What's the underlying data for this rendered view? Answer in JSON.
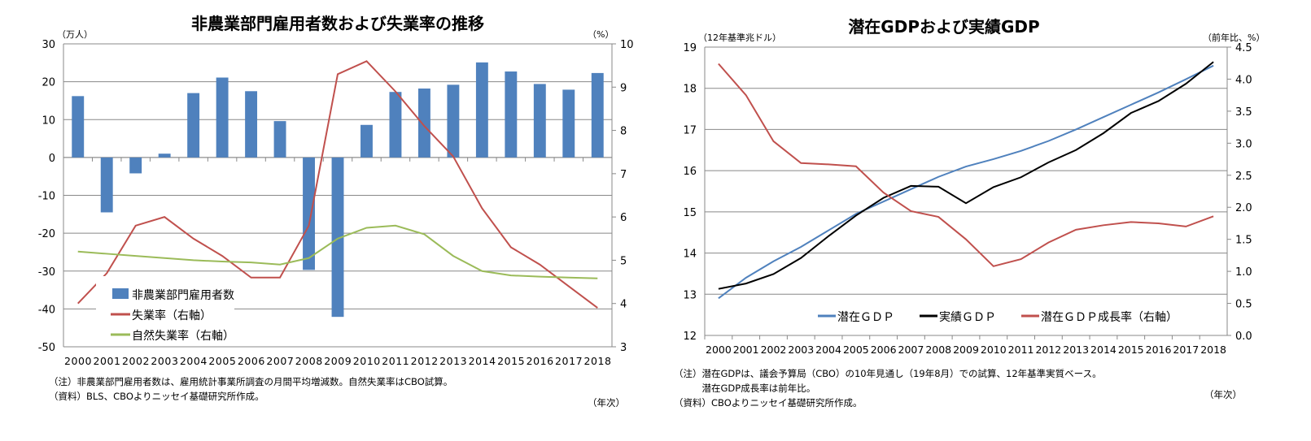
{
  "chart_data": [
    {
      "type": "bar+line",
      "title": "非農業部門雇用者数および失業率の推移",
      "ylabel_left": "（万人）",
      "ylabel_right": "（%）",
      "xlabel": "（年次）",
      "ylim_left": [
        -50,
        30
      ],
      "yticks_left": [
        30,
        20,
        10,
        0,
        -10,
        -20,
        -30,
        -40,
        -50
      ],
      "ylim_right": [
        3,
        10
      ],
      "yticks_right": [
        10,
        9,
        8,
        7,
        6,
        5,
        4,
        3
      ],
      "categories": [
        "2000",
        "2001",
        "2002",
        "2003",
        "2004",
        "2005",
        "2006",
        "2007",
        "2008",
        "2009",
        "2010",
        "2011",
        "2012",
        "2013",
        "2014",
        "2015",
        "2016",
        "2017",
        "2018"
      ],
      "grid": true,
      "legend": "bottom-left",
      "series": [
        {
          "name": "非農業部門雇用者数",
          "axis": "left",
          "kind": "bar",
          "color": "#4f81bd",
          "values": [
            16.2,
            -14.5,
            -4.2,
            1.0,
            17.0,
            21.1,
            17.5,
            9.6,
            -29.7,
            -42.1,
            8.6,
            17.3,
            18.2,
            19.2,
            25.1,
            22.7,
            19.4,
            17.9,
            22.3
          ]
        },
        {
          "name": "失業率（右軸）",
          "axis": "right",
          "kind": "line",
          "color": "#c0504d",
          "values": [
            4.0,
            4.7,
            5.8,
            6.0,
            5.5,
            5.1,
            4.6,
            4.6,
            5.8,
            9.3,
            9.6,
            8.9,
            8.1,
            7.4,
            6.2,
            5.3,
            4.9,
            4.4,
            3.9
          ]
        },
        {
          "name": "自然失業率（右軸）",
          "axis": "right",
          "kind": "line",
          "color": "#9bbb59",
          "values": [
            5.2,
            5.15,
            5.1,
            5.05,
            5.0,
            4.97,
            4.95,
            4.9,
            5.05,
            5.5,
            5.75,
            5.8,
            5.6,
            5.1,
            4.75,
            4.65,
            4.62,
            4.6,
            4.58
          ]
        }
      ],
      "notes": [
        "（注）非農業部門雇用者数は、雇用統計事業所調査の月間平均増減数。自然失業率はCBO試算。",
        "（資料）BLS、CBOよりニッセイ基礎研究所作成。"
      ]
    },
    {
      "type": "line",
      "title": "潜在GDPおよび実績GDP",
      "ylabel_left": "（12年基準兆ドル）",
      "ylabel_right": "（前年比、%）",
      "xlabel": "（年次）",
      "ylim_left": [
        12,
        19
      ],
      "yticks_left": [
        19,
        18,
        17,
        16,
        15,
        14,
        13,
        12
      ],
      "ylim_right": [
        0,
        4.5
      ],
      "yticks_right": [
        "4.5",
        "4.0",
        "3.5",
        "3.0",
        "2.5",
        "2.0",
        "1.5",
        "1.0",
        "0.5",
        "0.0"
      ],
      "categories": [
        "2000",
        "2001",
        "2002",
        "2003",
        "2004",
        "2005",
        "2006",
        "2007",
        "2008",
        "2009",
        "2010",
        "2011",
        "2012",
        "2013",
        "2014",
        "2015",
        "2016",
        "2017",
        "2018"
      ],
      "grid": true,
      "legend": "bottom",
      "series": [
        {
          "name": "潜在ＧＤＰ",
          "axis": "left",
          "color": "#4f81bd",
          "values": [
            12.9,
            13.4,
            13.8,
            14.15,
            14.55,
            14.95,
            15.25,
            15.55,
            15.85,
            16.1,
            16.28,
            16.48,
            16.72,
            17.0,
            17.3,
            17.6,
            17.9,
            18.22,
            18.55
          ]
        },
        {
          "name": "実績ＧＤＰ",
          "axis": "left",
          "color": "#000000",
          "values": [
            13.13,
            13.26,
            13.49,
            13.88,
            14.41,
            14.91,
            15.34,
            15.63,
            15.61,
            15.21,
            15.6,
            15.84,
            16.2,
            16.5,
            16.91,
            17.4,
            17.69,
            18.11,
            18.64
          ]
        },
        {
          "name": "潜在ＧＤＰ成長率（右軸）",
          "axis": "right",
          "color": "#c0504d",
          "values": [
            4.24,
            3.75,
            3.03,
            2.69,
            2.67,
            2.64,
            2.23,
            1.94,
            1.85,
            1.5,
            1.08,
            1.19,
            1.45,
            1.65,
            1.72,
            1.77,
            1.75,
            1.7,
            1.86
          ]
        }
      ],
      "notes": [
        "（注）潜在GDPは、議会予算局（CBO）の10年見通し（19年8月）での試算、12年基準実質ベース。",
        "　　　潜在GDP成長率は前年比。",
        "（資料）CBOよりニッセイ基礎研究所作成。"
      ]
    }
  ]
}
